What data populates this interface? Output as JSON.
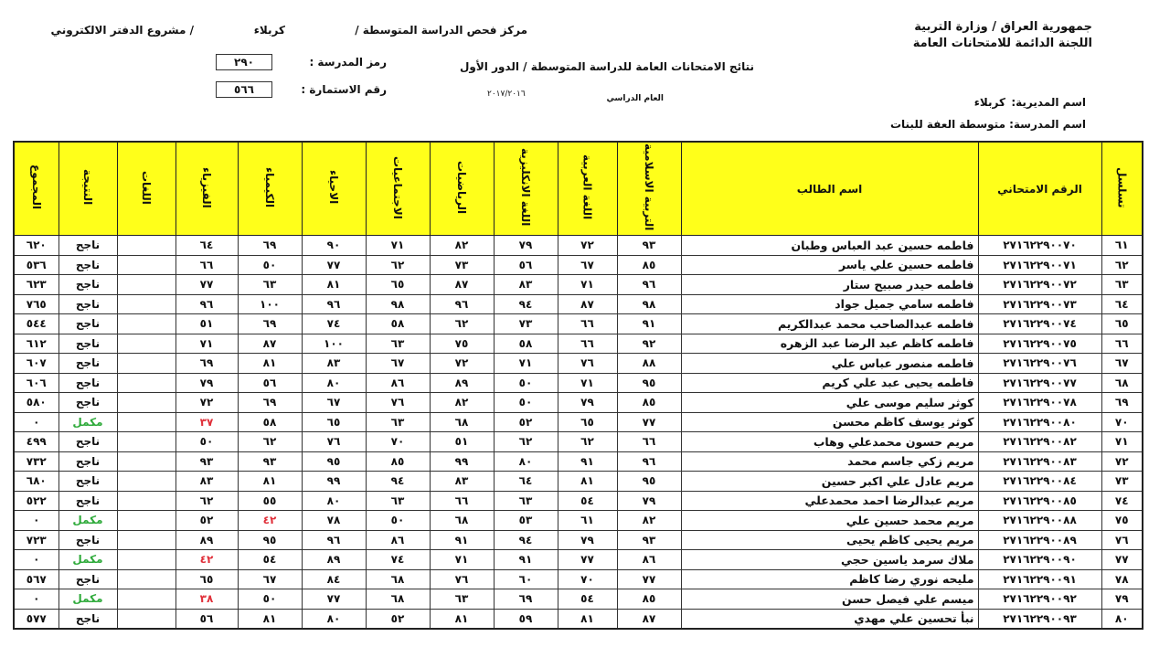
{
  "header": {
    "ministry": "جمهورية العراق / وزارة التربية",
    "committee": "اللجنة الدائمة للامتحانات العامة",
    "center": "مركز فحص الدراسة المتوسطة  /",
    "city": "كربلاء",
    "project": "/ مشروع الدفتر الالكتروني",
    "results_title": "نتائج الامتحانات العامة للدراسة المتوسطة / الدور الأول",
    "school_code_label": "رمز المدرسة :",
    "school_code": "٢٩٠",
    "form_number_label": "رقم الاستمارة :",
    "form_number": "٥٦٦",
    "academic_year_label": "العام الدراسي",
    "academic_year": "٢٠١٧/٢٠١٦",
    "directorate_label": "اسم المديرية:",
    "directorate": "كربلاء",
    "school_label": "اسم المدرسة:",
    "school": "متوسطة العفة للبنات"
  },
  "table": {
    "columns": [
      "تسلسل",
      "الرقم الامتحاني",
      "اسم الطالب",
      "التربية الاسلامية",
      "اللغة العربية",
      "اللغة الانكليزية",
      "الرياضيات",
      "الاجتماعيات",
      "الاحياء",
      "الكيمياء",
      "الفيزياء",
      "اللغات",
      "النتيجة",
      "المجموع"
    ],
    "rows": [
      [
        "٦١",
        "٢٧١٦٢٢٩٠٠٧٠",
        "فاطمه حسين عبد العباس وطبان",
        "٩٣",
        "٧٢",
        "٧٩",
        "٨٢",
        "٧١",
        "٩٠",
        "٦٩",
        "٦٤",
        "",
        "ناجح",
        "٦٢٠"
      ],
      [
        "٦٢",
        "٢٧١٦٢٢٩٠٠٧١",
        "فاطمه حسين علي ياسر",
        "٨٥",
        "٦٧",
        "٥٦",
        "٧٣",
        "٦٢",
        "٧٧",
        "٥٠",
        "٦٦",
        "",
        "ناجح",
        "٥٣٦"
      ],
      [
        "٦٣",
        "٢٧١٦٢٢٩٠٠٧٢",
        "فاطمه حيدر صبيح ستار",
        "٩٦",
        "٧١",
        "٨٣",
        "٨٧",
        "٦٥",
        "٨١",
        "٦٣",
        "٧٧",
        "",
        "ناجح",
        "٦٢٣"
      ],
      [
        "٦٤",
        "٢٧١٦٢٢٩٠٠٧٣",
        "فاطمه سامي جميل جواد",
        "٩٨",
        "٨٧",
        "٩٤",
        "٩٦",
        "٩٨",
        "٩٦",
        "١٠٠",
        "٩٦",
        "",
        "ناجح",
        "٧٦٥"
      ],
      [
        "٦٥",
        "٢٧١٦٢٢٩٠٠٧٤",
        "فاطمه عبدالصاحب محمد عبدالكريم",
        "٩١",
        "٦٦",
        "٧٣",
        "٦٢",
        "٥٨",
        "٧٤",
        "٦٩",
        "٥١",
        "",
        "ناجح",
        "٥٤٤"
      ],
      [
        "٦٦",
        "٢٧١٦٢٢٩٠٠٧٥",
        "فاطمه كاظم عبد الرضا عبد الزهره",
        "٩٢",
        "٦٦",
        "٥٨",
        "٧٥",
        "٦٣",
        "١٠٠",
        "٨٧",
        "٧١",
        "",
        "ناجح",
        "٦١٢"
      ],
      [
        "٦٧",
        "٢٧١٦٢٢٩٠٠٧٦",
        "فاطمه منصور عباس علي",
        "٨٨",
        "٧٦",
        "٧١",
        "٧٢",
        "٦٧",
        "٨٣",
        "٨١",
        "٦٩",
        "",
        "ناجح",
        "٦٠٧"
      ],
      [
        "٦٨",
        "٢٧١٦٢٢٩٠٠٧٧",
        "فاطمه يحيى عبد علي كريم",
        "٩٥",
        "٧١",
        "٥٠",
        "٨٩",
        "٨٦",
        "٨٠",
        "٥٦",
        "٧٩",
        "",
        "ناجح",
        "٦٠٦"
      ],
      [
        "٦٩",
        "٢٧١٦٢٢٩٠٠٧٨",
        "كوثر سليم موسى علي",
        "٨٥",
        "٧٩",
        "٥٠",
        "٨٢",
        "٧٦",
        "٦٧",
        "٦٩",
        "٧٢",
        "",
        "ناجح",
        "٥٨٠"
      ],
      [
        "٧٠",
        "٢٧١٦٢٢٩٠٠٨٠",
        "كوثر يوسف كاظم محسن",
        "٧٧",
        "٦٥",
        "٥٢",
        "٦٨",
        "٦٣",
        "٦٥",
        "٥٨",
        "٣٧",
        "",
        "مكمل",
        "٠"
      ],
      [
        "٧١",
        "٢٧١٦٢٢٩٠٠٨٢",
        "مريم حسون محمدعلي وهاب",
        "٦٦",
        "٦٢",
        "٦٢",
        "٥١",
        "٧٠",
        "٧٦",
        "٦٢",
        "٥٠",
        "",
        "ناجح",
        "٤٩٩"
      ],
      [
        "٧٢",
        "٢٧١٦٢٢٩٠٠٨٣",
        "مريم زكي جاسم محمد",
        "٩٦",
        "٩١",
        "٨٠",
        "٩٩",
        "٨٥",
        "٩٥",
        "٩٣",
        "٩٣",
        "",
        "ناجح",
        "٧٣٢"
      ],
      [
        "٧٣",
        "٢٧١٦٢٢٩٠٠٨٤",
        "مريم عادل علي اكبر حسين",
        "٩٥",
        "٨١",
        "٦٤",
        "٨٣",
        "٩٤",
        "٩٩",
        "٨١",
        "٨٣",
        "",
        "ناجح",
        "٦٨٠"
      ],
      [
        "٧٤",
        "٢٧١٦٢٢٩٠٠٨٥",
        "مريم عبدالرضا احمد محمدعلي",
        "٧٩",
        "٥٤",
        "٦٣",
        "٦٦",
        "٦٣",
        "٨٠",
        "٥٥",
        "٦٢",
        "",
        "ناجح",
        "٥٢٢"
      ],
      [
        "٧٥",
        "٢٧١٦٢٢٩٠٠٨٨",
        "مريم محمد حسين علي",
        "٨٢",
        "٦١",
        "٥٣",
        "٦٨",
        "٥٠",
        "٧٨",
        "٤٢",
        "٥٢",
        "",
        "مكمل",
        "٠"
      ],
      [
        "٧٦",
        "٢٧١٦٢٢٩٠٠٨٩",
        "مريم يحيى كاظم يحيى",
        "٩٣",
        "٧٩",
        "٩٤",
        "٩١",
        "٨٦",
        "٩٦",
        "٩٥",
        "٨٩",
        "",
        "ناجح",
        "٧٢٣"
      ],
      [
        "٧٧",
        "٢٧١٦٢٢٩٠٠٩٠",
        "ملاك سرمد ياسين حجي",
        "٨٦",
        "٧٧",
        "٩١",
        "٧١",
        "٧٤",
        "٨٩",
        "٥٤",
        "٤٢",
        "",
        "مكمل",
        "٠"
      ],
      [
        "٧٨",
        "٢٧١٦٢٢٩٠٠٩١",
        "مليحه نوري رضا كاظم",
        "٧٧",
        "٧٠",
        "٦٠",
        "٧٦",
        "٦٨",
        "٨٤",
        "٦٧",
        "٦٥",
        "",
        "ناجح",
        "٥٦٧"
      ],
      [
        "٧٩",
        "٢٧١٦٢٢٩٠٠٩٢",
        "ميسم علي فيصل حسن",
        "٨٥",
        "٥٤",
        "٦٩",
        "٦٣",
        "٦٨",
        "٧٧",
        "٥٠",
        "٣٨",
        "",
        "مكمل",
        "٠"
      ],
      [
        "٨٠",
        "٢٧١٦٢٢٩٠٠٩٣",
        "نبأ تحسين علي مهدي",
        "٨٧",
        "٨١",
        "٥٩",
        "٨١",
        "٥٢",
        "٨٠",
        "٨١",
        "٥٦",
        "",
        "ناجح",
        "٥٧٧"
      ]
    ],
    "failing_marks": [
      [
        9,
        10
      ],
      [
        14,
        9
      ],
      [
        16,
        10
      ],
      [
        18,
        10
      ]
    ],
    "colors": {
      "header_bg": "#ffff1a",
      "fail": "#e0303a",
      "complementary": "#2eaa3a"
    }
  }
}
